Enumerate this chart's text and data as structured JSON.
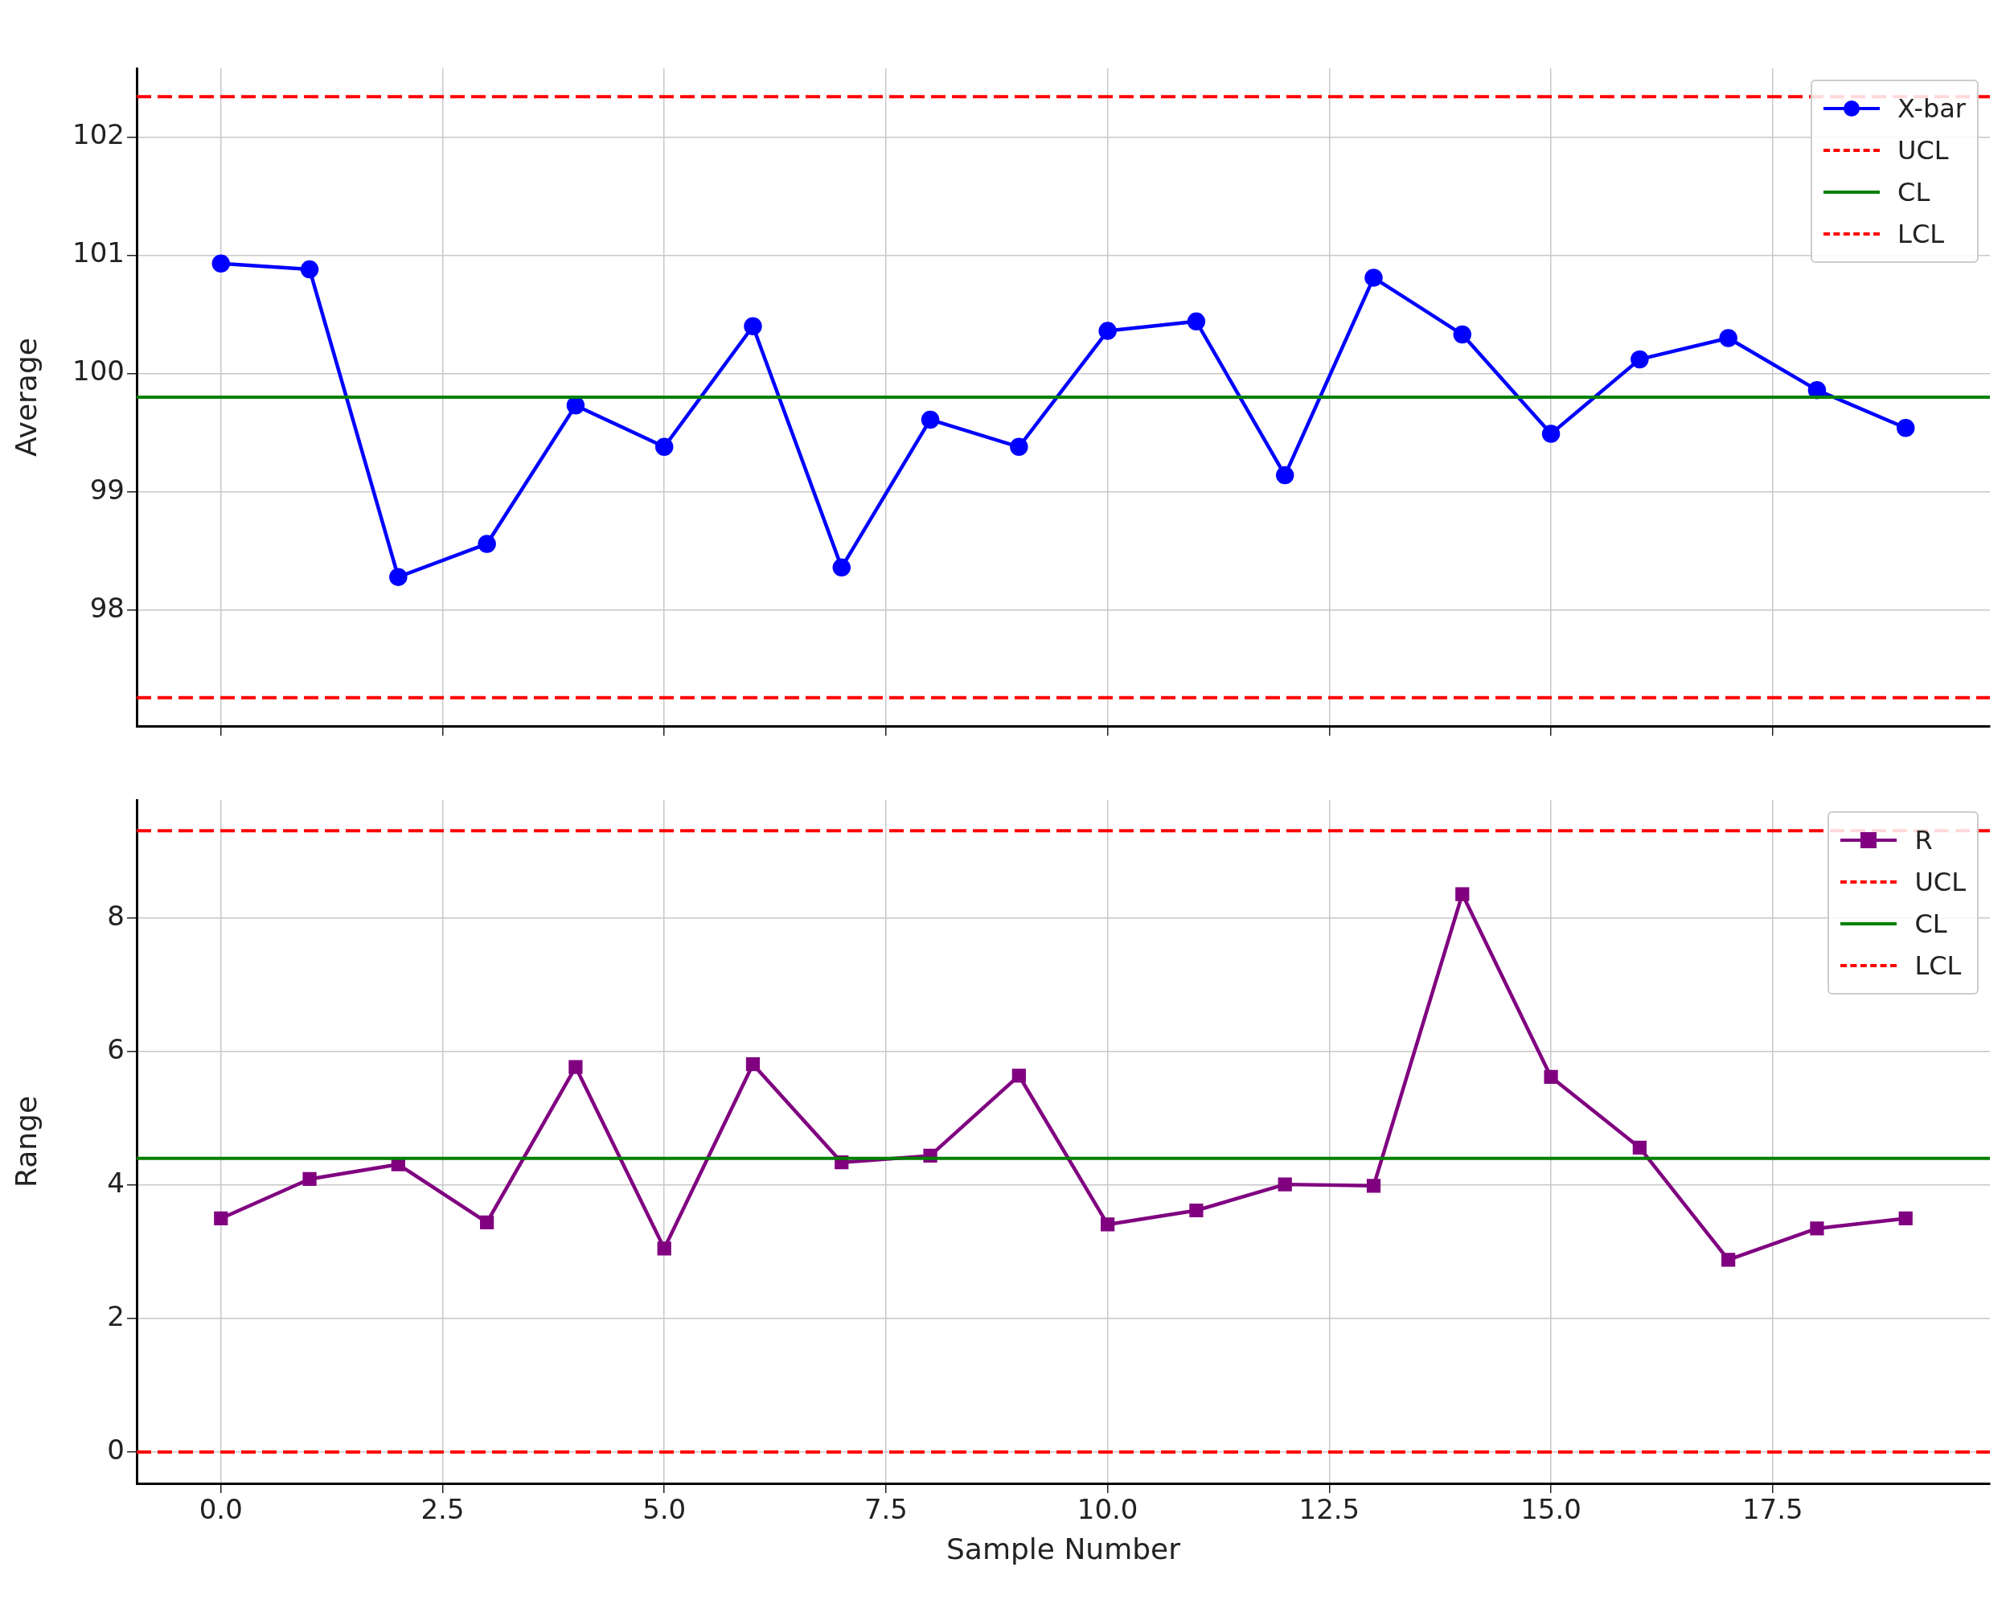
{
  "chart_data": [
    {
      "type": "line",
      "ylabel": "Average",
      "x": [
        0,
        1,
        2,
        3,
        4,
        5,
        6,
        7,
        8,
        9,
        10,
        11,
        12,
        13,
        14,
        15,
        16,
        17,
        18,
        19
      ],
      "series": [
        {
          "name": "X-bar",
          "color": "#0000ff",
          "values": [
            100.93,
            100.88,
            98.28,
            98.56,
            99.73,
            99.38,
            100.4,
            98.36,
            99.61,
            99.38,
            100.36,
            100.44,
            99.14,
            100.81,
            100.33,
            99.49,
            100.12,
            100.3,
            99.86,
            99.54
          ]
        }
      ],
      "ref_lines": [
        {
          "axis": "y",
          "value": 102.34,
          "label": "UCL",
          "color": "#ff0000",
          "line_style": "dashed"
        },
        {
          "axis": "y",
          "value": 99.8,
          "label": "CL",
          "color": "#008000",
          "line_style": "solid"
        },
        {
          "axis": "y",
          "value": 97.26,
          "label": "LCL",
          "color": "#ff0000",
          "line_style": "dashed"
        }
      ],
      "xlim": [
        -0.95,
        19.95
      ],
      "xticks": [
        {
          "value": 0,
          "label": null
        },
        {
          "value": 2.5,
          "label": null
        },
        {
          "value": 5,
          "label": null
        },
        {
          "value": 7.5,
          "label": null
        },
        {
          "value": 10,
          "label": null
        },
        {
          "value": 12.5,
          "label": null
        },
        {
          "value": 15,
          "label": null
        },
        {
          "value": 17.5,
          "label": null
        }
      ],
      "ylim": [
        97.02,
        102.58
      ],
      "yticks": [
        98,
        99,
        100,
        101,
        102
      ],
      "tick_labels": "y",
      "grid": true,
      "legend": "top right",
      "marker": "circle",
      "line_style": "solid"
    },
    {
      "type": "line",
      "xlabel": "Sample Number",
      "ylabel": "Range",
      "x": [
        0,
        1,
        2,
        3,
        4,
        5,
        6,
        7,
        8,
        9,
        10,
        11,
        12,
        13,
        14,
        15,
        16,
        17,
        18,
        19
      ],
      "series": [
        {
          "name": "R",
          "color": "#800080",
          "values": [
            3.5,
            4.09,
            4.31,
            3.44,
            5.77,
            3.05,
            5.81,
            4.34,
            4.44,
            5.64,
            3.41,
            3.62,
            4.01,
            3.99,
            8.36,
            5.62,
            4.56,
            2.88,
            3.35,
            3.5
          ]
        }
      ],
      "ref_lines": [
        {
          "axis": "y",
          "value": 9.31,
          "label": "UCL",
          "color": "#ff0000",
          "line_style": "dashed"
        },
        {
          "axis": "y",
          "value": 4.4,
          "label": "CL",
          "color": "#008000",
          "line_style": "solid"
        },
        {
          "axis": "y",
          "value": 0,
          "label": "LCL",
          "color": "#ff0000",
          "line_style": "dashed"
        }
      ],
      "xlim": [
        -0.95,
        19.95
      ],
      "xticks": [
        {
          "value": 0,
          "label": "0.0"
        },
        {
          "value": 2.5,
          "label": "2.5"
        },
        {
          "value": 5,
          "label": "5.0"
        },
        {
          "value": 7.5,
          "label": "7.5"
        },
        {
          "value": 10,
          "label": "10.0"
        },
        {
          "value": 12.5,
          "label": "12.5"
        },
        {
          "value": 15,
          "label": "15.0"
        },
        {
          "value": 17.5,
          "label": "17.5"
        }
      ],
      "ylim": [
        -0.47,
        9.77
      ],
      "yticks": [
        0,
        2,
        4,
        6,
        8
      ],
      "grid": true,
      "legend": "top right",
      "marker": "square",
      "line_style": "solid"
    }
  ]
}
